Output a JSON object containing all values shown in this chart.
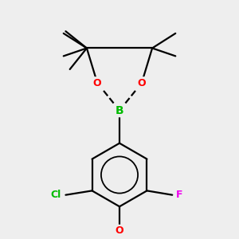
{
  "background_color": "#eeeeee",
  "atom_colors": {
    "B": "#00bb00",
    "O": "#ff0000",
    "Cl": "#00bb00",
    "F": "#ee00ee",
    "C": "#000000"
  },
  "bond_color": "#000000",
  "bond_width": 1.6,
  "figsize": [
    3.0,
    3.0
  ],
  "dpi": 100
}
